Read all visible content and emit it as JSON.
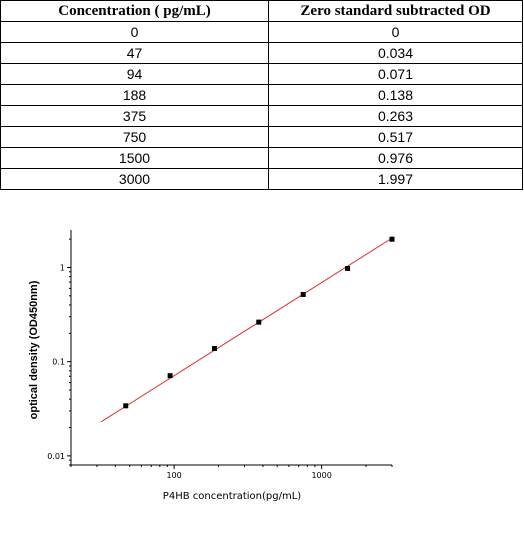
{
  "table": {
    "headers": [
      "Concentration ( pg/mL)",
      "Zero standard subtracted OD"
    ],
    "rows": [
      [
        "0",
        "0"
      ],
      [
        "47",
        "0.034"
      ],
      [
        "94",
        "0.071"
      ],
      [
        "188",
        "0.138"
      ],
      [
        "375",
        "0.263"
      ],
      [
        "750",
        "0.517"
      ],
      [
        "1500",
        "0.976"
      ],
      [
        "3000",
        "1.997"
      ]
    ]
  },
  "chart_data": {
    "type": "scatter",
    "xlabel": "P4HB concentration(pg/mL)",
    "ylabel": "optical density (OD450nm)",
    "x_scale": "log",
    "y_scale": "log",
    "xlim": [
      20,
      3000
    ],
    "ylim": [
      0.008,
      2.5
    ],
    "x_ticks": [
      {
        "value": 100,
        "label": "100"
      },
      {
        "value": 1000,
        "label": "1000"
      }
    ],
    "y_ticks": [
      {
        "value": 0.01,
        "label": "0.01"
      },
      {
        "value": 0.1,
        "label": "0.1"
      },
      {
        "value": 1,
        "label": "1"
      }
    ],
    "series": [
      {
        "x": [
          47,
          94,
          188,
          375,
          750,
          1500,
          3000
        ],
        "y": [
          0.034,
          0.071,
          0.138,
          0.263,
          0.517,
          0.976,
          1.997
        ],
        "marker_color": "#000000"
      }
    ],
    "fit_line": {
      "x": [
        32,
        3000
      ],
      "y": [
        0.023,
        2.05
      ],
      "color": "#e03030"
    },
    "grid": false
  }
}
